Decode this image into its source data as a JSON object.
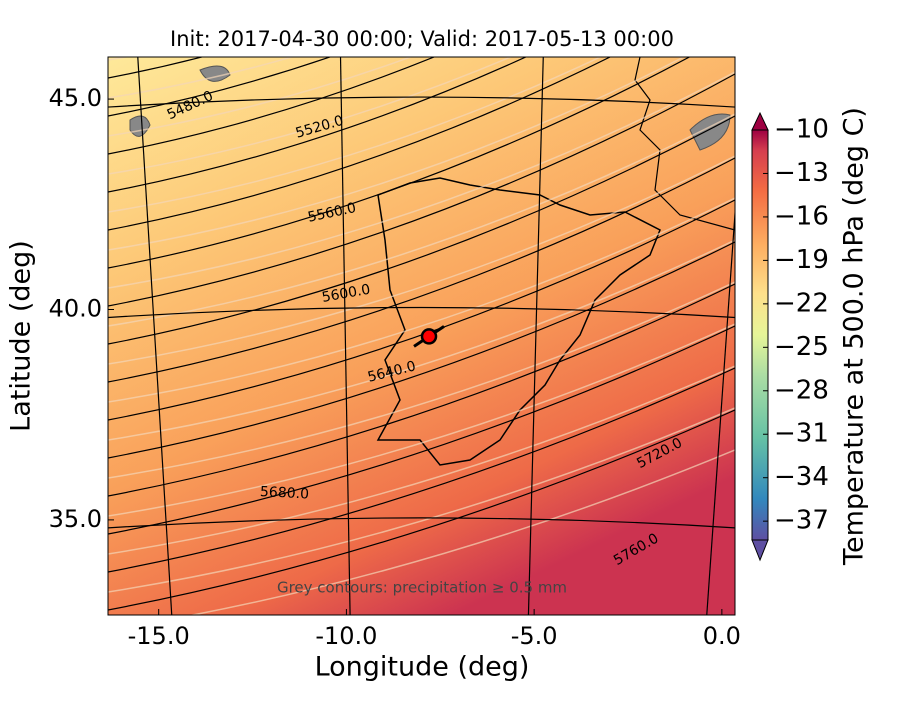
{
  "title": "Init: 2017-04-30 00:00; Valid: 2017-05-13 00:00",
  "x_axis": {
    "label": "Longitude (deg)",
    "lim": [
      -16.35,
      0.35
    ],
    "ticks": [
      {
        "value": -15,
        "label": "-15.0"
      },
      {
        "value": -10,
        "label": "-10.0"
      },
      {
        "value": -5,
        "label": "-5.0"
      },
      {
        "value": 0,
        "label": "0.0"
      }
    ]
  },
  "y_axis": {
    "label": "Latitude (deg)",
    "lim": [
      32.74,
      46.0
    ],
    "ticks": [
      {
        "value": 35,
        "label": "35.0"
      },
      {
        "value": 40,
        "label": "40.0"
      },
      {
        "value": 45,
        "label": "45.0"
      }
    ]
  },
  "colorbar": {
    "label": "Temperature at 500.0 hPa (deg C)",
    "lim": [
      -38.3,
      -10
    ],
    "ticks": [
      {
        "value": -10,
        "label": "−10"
      },
      {
        "value": -13,
        "label": "−13"
      },
      {
        "value": -16,
        "label": "−16"
      },
      {
        "value": -19,
        "label": "−19"
      },
      {
        "value": -22,
        "label": "−22"
      },
      {
        "value": -25,
        "label": "−25"
      },
      {
        "value": -28,
        "label": "−28"
      },
      {
        "value": -31,
        "label": "−31"
      },
      {
        "value": -34,
        "label": "−34"
      },
      {
        "value": -37,
        "label": "−37"
      }
    ]
  },
  "contour_labels": [
    "5480.0",
    "5520.0",
    "5560.0",
    "5600.0",
    "5640.0",
    "5680.0",
    "5720.0",
    "5760.0"
  ],
  "annotation": "Grey contours: precipitation ≥ 0.5 mm",
  "marker": {
    "lon": -7.8,
    "lat": 39.36
  }
}
